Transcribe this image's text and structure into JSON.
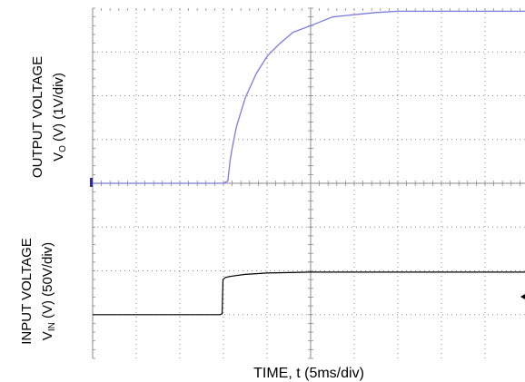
{
  "chart_data": {
    "type": "line",
    "grid": true,
    "x_divisions": 10,
    "y_divisions": 8,
    "xlabel": {
      "main": "TIME, t (5ms/div)"
    },
    "ylabel_output": {
      "line1": "OUTPUT VOLTAGE",
      "pre": "V",
      "sub": "O",
      "post": " (V) (1V/div)"
    },
    "ylabel_input": {
      "line1": "INPUT VOLTAGE",
      "pre": "V",
      "sub": "IN",
      "post": " (V) (50V/div)"
    },
    "colors": {
      "output": "#7b7bdc",
      "input": "#000000",
      "grid": "#8a8a8a"
    },
    "series": [
      {
        "name": "VO",
        "units": "div",
        "x_div": [
          0,
          1,
          2,
          3,
          3.1,
          3.15,
          3.2,
          3.3,
          3.5,
          3.75,
          4,
          4.3,
          4.6,
          5,
          5.5,
          6,
          6.5,
          7,
          8,
          9,
          10
        ],
        "y_div": [
          4,
          4,
          4,
          4,
          4.05,
          4.5,
          4.8,
          5.3,
          5.95,
          6.5,
          6.9,
          7.2,
          7.45,
          7.6,
          7.8,
          7.85,
          7.9,
          7.93,
          7.93,
          7.93,
          7.93
        ]
      },
      {
        "name": "VIN",
        "units": "div",
        "x_div": [
          0,
          1,
          2,
          2.92,
          2.97,
          2.99,
          3.05,
          3.2,
          3.5,
          4,
          4.5,
          5,
          6,
          7,
          8,
          9,
          10
        ],
        "y_div": [
          1,
          1,
          1,
          1,
          1.02,
          1.8,
          1.85,
          1.88,
          1.92,
          1.95,
          1.96,
          1.97,
          1.97,
          1.97,
          1.97,
          1.97,
          1.97
        ]
      }
    ]
  }
}
